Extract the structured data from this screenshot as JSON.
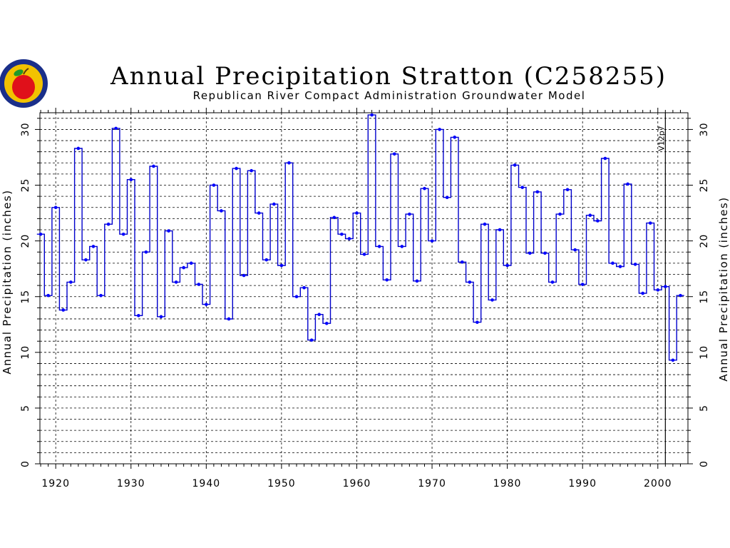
{
  "chart_data": {
    "type": "line",
    "title": "Annual Precipitation Stratton (C258255)",
    "subtitle": "Republican River Compact Administration Groundwater Model",
    "ylabel": "Annual Precipitation (inches)",
    "xlim": [
      1917.9,
      2004.0
    ],
    "ylim": [
      0,
      31.5
    ],
    "x_ticks": [
      1920,
      1930,
      1940,
      1950,
      1960,
      1970,
      1980,
      1990,
      2000
    ],
    "y_ticks": [
      0,
      5,
      10,
      15,
      20,
      25,
      30
    ],
    "grid": true,
    "annotation": {
      "text": "V12p7",
      "x": 2001
    },
    "series": [
      {
        "x": [
          1918,
          1919,
          1920,
          1921,
          1922,
          1923,
          1924,
          1925,
          1926,
          1927,
          1928,
          1929,
          1930,
          1931,
          1932,
          1933,
          1934,
          1935,
          1936,
          1937,
          1938,
          1939,
          1940,
          1941,
          1942,
          1943,
          1944,
          1945,
          1946,
          1947,
          1948,
          1949,
          1950,
          1951,
          1952,
          1953,
          1954,
          1955,
          1956,
          1957,
          1958,
          1959,
          1960,
          1961,
          1962,
          1963,
          1964,
          1965,
          1966,
          1967,
          1968,
          1969,
          1970,
          1971,
          1972,
          1973,
          1974,
          1975,
          1976,
          1977,
          1978,
          1979,
          1980,
          1981,
          1982,
          1983,
          1984,
          1985,
          1986,
          1987,
          1988,
          1989,
          1990,
          1991,
          1992,
          1993,
          1994,
          1995,
          1996,
          1997,
          1998,
          1999,
          2000,
          2001,
          2002,
          2003
        ],
        "values": [
          20.6,
          15.1,
          23.0,
          13.8,
          16.3,
          28.3,
          18.3,
          19.5,
          15.1,
          21.5,
          30.1,
          20.6,
          25.5,
          13.3,
          19.0,
          26.7,
          13.2,
          20.9,
          16.3,
          17.6,
          18.0,
          16.1,
          14.3,
          25.0,
          22.7,
          13.0,
          26.5,
          16.9,
          26.3,
          22.5,
          18.3,
          23.3,
          17.8,
          27.0,
          15.0,
          15.8,
          11.1,
          13.4,
          12.6,
          22.1,
          20.6,
          20.2,
          22.5,
          18.8,
          31.3,
          19.5,
          16.5,
          27.8,
          19.5,
          22.4,
          16.4,
          24.7,
          20.0,
          30.0,
          23.9,
          29.3,
          18.1,
          16.3,
          12.7,
          21.5,
          14.7,
          21.0,
          17.8,
          26.8,
          24.8,
          18.9,
          24.4,
          18.9,
          16.3,
          22.4,
          24.6,
          19.2,
          16.1,
          22.3,
          21.8,
          27.4,
          18.0,
          17.7,
          25.1,
          17.9,
          15.3,
          21.6,
          15.6,
          15.9,
          9.3,
          15.1
        ]
      }
    ],
    "colors": {
      "series": "#0000cc",
      "marker": "#0000ff",
      "grid": "#000000"
    }
  }
}
